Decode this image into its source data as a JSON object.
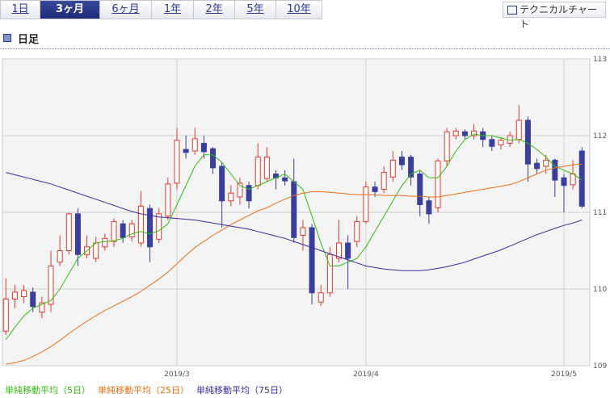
{
  "header": {
    "tabs": [
      "1日",
      "3ヶ月",
      "6ヶ月",
      "1年",
      "2年",
      "5年",
      "10年"
    ],
    "active_tab": 1,
    "button": "テクニカルチャート",
    "section_title": "日足"
  },
  "chart_data": {
    "type": "candlestick",
    "categories": [
      null,
      null,
      null,
      null,
      null,
      null,
      null,
      null,
      null,
      null,
      null,
      null,
      null,
      null,
      null,
      null,
      null,
      null,
      null,
      "2019/3",
      null,
      null,
      null,
      null,
      null,
      null,
      null,
      null,
      null,
      null,
      null,
      null,
      null,
      null,
      null,
      null,
      null,
      null,
      null,
      null,
      "2019/4",
      null,
      null,
      null,
      null,
      null,
      null,
      null,
      null,
      null,
      null,
      null,
      null,
      null,
      null,
      null,
      null,
      null,
      null,
      null,
      null,
      null,
      "2019/5",
      null,
      null
    ],
    "open": [
      109.45,
      109.87,
      109.9,
      109.96,
      109.7,
      109.8,
      110.35,
      110.5,
      110.98,
      110.45,
      110.4,
      110.55,
      110.62,
      110.85,
      110.68,
      110.6,
      111.05,
      110.65,
      110.95,
      111.38,
      111.82,
      111.8,
      111.9,
      111.83,
      111.6,
      111.15,
      111.2,
      111.35,
      111.35,
      111.44,
      111.5,
      111.45,
      111.4,
      110.7,
      110.8,
      109.83,
      109.95,
      110.4,
      110.6,
      110.62,
      110.88,
      111.33,
      111.3,
      111.46,
      111.72,
      111.72,
      111.5,
      111.15,
      111.06,
      111.67,
      112.0,
      112.05,
      112.0,
      112.05,
      111.95,
      111.88,
      111.9,
      111.95,
      112.2,
      111.64,
      111.6,
      111.68,
      111.45,
      111.36,
      111.8
    ],
    "high": [
      110.14,
      110.05,
      110.05,
      110.02,
      109.9,
      110.5,
      110.7,
      111.0,
      111.05,
      110.7,
      110.68,
      110.72,
      110.92,
      110.9,
      110.9,
      111.28,
      111.1,
      111.05,
      111.45,
      112.1,
      112.0,
      112.1,
      112.0,
      111.85,
      111.65,
      111.35,
      111.45,
      111.4,
      111.9,
      111.85,
      111.55,
      111.55,
      111.7,
      110.9,
      110.85,
      110.05,
      110.55,
      110.9,
      110.7,
      110.95,
      111.4,
      111.4,
      111.6,
      111.8,
      111.8,
      111.75,
      111.55,
      111.2,
      111.7,
      112.1,
      112.1,
      112.08,
      112.15,
      112.1,
      112.0,
      111.98,
      112.05,
      112.4,
      112.25,
      111.7,
      111.75,
      111.7,
      111.5,
      111.68,
      111.85
    ],
    "low": [
      109.4,
      109.75,
      109.82,
      109.7,
      109.62,
      109.7,
      110.3,
      110.45,
      110.3,
      110.4,
      110.35,
      110.5,
      110.55,
      110.6,
      110.62,
      110.55,
      110.35,
      110.6,
      110.9,
      111.3,
      111.7,
      111.75,
      111.7,
      111.5,
      110.8,
      111.08,
      111.1,
      111.05,
      111.3,
      111.4,
      111.3,
      111.35,
      110.6,
      110.5,
      109.8,
      109.78,
      109.9,
      110.35,
      110.0,
      110.55,
      110.85,
      111.2,
      111.25,
      111.4,
      111.55,
      111.35,
      110.95,
      110.85,
      111.0,
      111.6,
      111.95,
      111.95,
      111.95,
      111.85,
      111.8,
      111.82,
      111.85,
      111.9,
      111.4,
      111.5,
      111.5,
      111.2,
      111.0,
      111.3,
      111.05
    ],
    "close": [
      109.87,
      109.96,
      109.98,
      109.77,
      109.82,
      110.3,
      110.5,
      110.98,
      110.45,
      110.55,
      110.6,
      110.66,
      110.88,
      110.67,
      110.85,
      111.08,
      110.55,
      110.98,
      111.37,
      111.94,
      111.78,
      111.96,
      111.79,
      111.58,
      111.15,
      111.25,
      111.38,
      111.15,
      111.72,
      111.72,
      111.45,
      111.41,
      110.67,
      110.8,
      109.95,
      109.95,
      110.45,
      110.6,
      110.4,
      110.88,
      111.33,
      111.27,
      111.52,
      111.68,
      111.62,
      111.46,
      111.1,
      110.98,
      111.67,
      112.05,
      112.06,
      112.0,
      112.06,
      111.95,
      111.86,
      111.94,
      112.0,
      112.2,
      111.63,
      111.57,
      111.68,
      111.42,
      111.35,
      111.5,
      111.08
    ],
    "up_color": "#e03a2a",
    "down_color": "#3a3f9e",
    "series": [
      {
        "name": "単純移動平均（5日）",
        "color": "#33bb11",
        "values": [
          109.34,
          109.5,
          109.65,
          109.75,
          109.8,
          109.85,
          110.0,
          110.2,
          110.4,
          110.5,
          110.6,
          110.62,
          110.63,
          110.66,
          110.72,
          110.75,
          110.72,
          110.76,
          110.85,
          111.1,
          111.35,
          111.6,
          111.75,
          111.75,
          111.65,
          111.5,
          111.35,
          111.3,
          111.35,
          111.4,
          111.45,
          111.5,
          111.4,
          111.3,
          110.95,
          110.6,
          110.3,
          110.3,
          110.35,
          110.4,
          110.55,
          110.75,
          110.95,
          111.15,
          111.35,
          111.5,
          111.55,
          111.45,
          111.45,
          111.6,
          111.8,
          111.95,
          112.02,
          112.0,
          112.0,
          111.97,
          111.94,
          111.95,
          111.9,
          111.82,
          111.72,
          111.6,
          111.55,
          111.5,
          111.42
        ]
      },
      {
        "name": "単純移動平均（25日）",
        "color": "#e8701a",
        "values": [
          109.02,
          109.04,
          109.07,
          109.12,
          109.18,
          109.25,
          109.33,
          109.42,
          109.5,
          109.58,
          109.65,
          109.72,
          109.78,
          109.84,
          109.9,
          109.97,
          110.05,
          110.13,
          110.22,
          110.33,
          110.44,
          110.54,
          110.62,
          110.7,
          110.77,
          110.84,
          110.9,
          110.96,
          111.02,
          111.06,
          111.12,
          111.17,
          111.22,
          111.25,
          111.27,
          111.27,
          111.26,
          111.25,
          111.24,
          111.23,
          111.23,
          111.23,
          111.22,
          111.22,
          111.22,
          111.21,
          111.21,
          111.2,
          111.2,
          111.22,
          111.24,
          111.26,
          111.28,
          111.3,
          111.32,
          111.34,
          111.36,
          111.4,
          111.45,
          111.5,
          111.55,
          111.58,
          111.6,
          111.62,
          111.63
        ]
      },
      {
        "name": "単純移動平均（75日）",
        "color": "#3a2a9e",
        "values": [
          111.52,
          111.49,
          111.46,
          111.43,
          111.4,
          111.37,
          111.33,
          111.29,
          111.25,
          111.21,
          111.17,
          111.13,
          111.09,
          111.05,
          111.01,
          110.98,
          110.96,
          110.94,
          110.93,
          110.92,
          110.91,
          110.9,
          110.88,
          110.86,
          110.84,
          110.82,
          110.8,
          110.78,
          110.75,
          110.72,
          110.69,
          110.66,
          110.62,
          110.58,
          110.54,
          110.5,
          110.46,
          110.42,
          110.38,
          110.34,
          110.3,
          110.28,
          110.26,
          110.25,
          110.24,
          110.24,
          110.24,
          110.25,
          110.27,
          110.29,
          110.32,
          110.35,
          110.39,
          110.43,
          110.47,
          110.51,
          110.56,
          110.61,
          110.66,
          110.71,
          110.75,
          110.79,
          110.83,
          110.86,
          110.9
        ]
      }
    ],
    "ylim": [
      109,
      113
    ],
    "yticks": [
      109,
      110,
      111,
      112,
      113
    ],
    "grid": true
  }
}
